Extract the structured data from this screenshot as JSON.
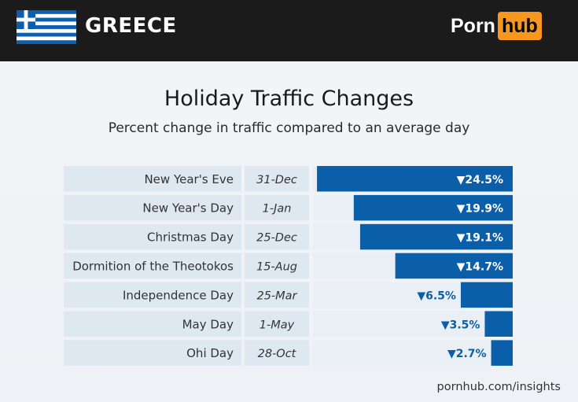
{
  "header": {
    "country": "GREECE",
    "flag_icon": "greece-flag-icon",
    "logo_left": "Porn",
    "logo_right": "hub",
    "logo_accent": "#f7971d"
  },
  "title": "Holiday Traffic Changes",
  "subtitle": "Percent change in traffic compared to an average day",
  "source": "pornhub.com/insights",
  "colors": {
    "bar": "#0b5fa8",
    "row_label_bg": "#dde8f1",
    "row_plot_bg": "#e9eff5"
  },
  "chart_data": {
    "type": "bar",
    "orientation": "horizontal",
    "title": "Holiday Traffic Changes",
    "subtitle": "Percent change in traffic compared to an average day",
    "categories": [
      "New Year's Eve",
      "New Year's Day",
      "Christmas Day",
      "Dormition of the Theotokos",
      "Independence Day",
      "May Day",
      "Ohi Day"
    ],
    "dates": [
      "31-Dec",
      "1-Jan",
      "25-Dec",
      "15-Aug",
      "25-Mar",
      "1-May",
      "28-Oct"
    ],
    "values": [
      -24.5,
      -19.9,
      -19.1,
      -14.7,
      -6.5,
      -3.5,
      -2.7
    ],
    "labels": [
      "▼24.5%",
      "▼19.9%",
      "▼19.1%",
      "▼14.7%",
      "▼6.5%",
      "▼3.5%",
      "▼2.7%"
    ],
    "xlim": [
      -25,
      0
    ],
    "grid": false,
    "legend": false
  }
}
